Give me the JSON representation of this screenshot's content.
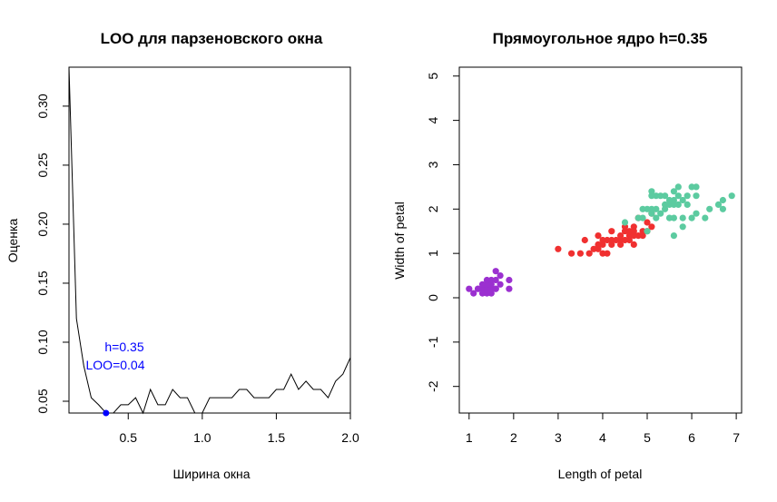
{
  "chart_data": [
    {
      "type": "line",
      "title": "LOO для парзеновского окна",
      "xlabel": "Ширина окна",
      "ylabel": "Оценка",
      "xlim": [
        0.1,
        2.0
      ],
      "ylim": [
        0.04,
        0.333
      ],
      "xticks": [
        0.5,
        1.0,
        1.5,
        2.0
      ],
      "xtick_labels": [
        "0.5",
        "1.0",
        "1.5",
        "2.0"
      ],
      "yticks": [
        0.05,
        0.1,
        0.15,
        0.2,
        0.25,
        0.3
      ],
      "ytick_labels": [
        "0.05",
        "0.10",
        "0.15",
        "0.20",
        "0.25",
        "0.30"
      ],
      "line_color": "#000000",
      "x": [
        0.1,
        0.15,
        0.2,
        0.25,
        0.3,
        0.35,
        0.4,
        0.45,
        0.5,
        0.55,
        0.6,
        0.65,
        0.7,
        0.75,
        0.8,
        0.85,
        0.9,
        0.95,
        1.0,
        1.05,
        1.1,
        1.15,
        1.2,
        1.25,
        1.3,
        1.35,
        1.4,
        1.45,
        1.5,
        1.55,
        1.6,
        1.65,
        1.7,
        1.75,
        1.8,
        1.85,
        1.9,
        1.95,
        2.0
      ],
      "y": [
        0.333,
        0.12,
        0.08,
        0.053,
        0.047,
        0.04,
        0.04,
        0.047,
        0.047,
        0.053,
        0.04,
        0.06,
        0.047,
        0.047,
        0.06,
        0.053,
        0.053,
        0.04,
        0.04,
        0.053,
        0.053,
        0.053,
        0.053,
        0.06,
        0.06,
        0.053,
        0.053,
        0.053,
        0.06,
        0.06,
        0.073,
        0.06,
        0.067,
        0.06,
        0.06,
        0.053,
        0.067,
        0.073,
        0.087
      ],
      "highlight": {
        "x": 0.35,
        "y": 0.04,
        "color": "#0000ff"
      },
      "annotation": {
        "lines": [
          "h=0.35",
          "LOO=0.04"
        ],
        "color": "#0000ff"
      }
    },
    {
      "type": "scatter",
      "title": "Прямоугольное ядро h=0.35",
      "xlabel": "Length of petal",
      "ylabel": "Width of petal",
      "xlim": [
        0.78,
        7.12
      ],
      "ylim": [
        -2.6,
        5.2
      ],
      "xticks": [
        1,
        2,
        3,
        4,
        5,
        6,
        7
      ],
      "xtick_labels": [
        "1",
        "2",
        "3",
        "4",
        "5",
        "6",
        "7"
      ],
      "yticks": [
        -2,
        -1,
        0,
        1,
        2,
        3,
        4,
        5
      ],
      "ytick_labels": [
        "-2",
        "-1",
        "0",
        "1",
        "2",
        "3",
        "4",
        "5"
      ],
      "series": [
        {
          "color": "#9b30d0",
          "points": [
            [
              1.0,
              0.2
            ],
            [
              1.1,
              0.1
            ],
            [
              1.2,
              0.2
            ],
            [
              1.3,
              0.2
            ],
            [
              1.3,
              0.3
            ],
            [
              1.3,
              0.1
            ],
            [
              1.4,
              0.2
            ],
            [
              1.4,
              0.3
            ],
            [
              1.4,
              0.1
            ],
            [
              1.5,
              0.2
            ],
            [
              1.5,
              0.4
            ],
            [
              1.5,
              0.1
            ],
            [
              1.6,
              0.2
            ],
            [
              1.6,
              0.4
            ],
            [
              1.6,
              0.6
            ],
            [
              1.7,
              0.3
            ],
            [
              1.7,
              0.5
            ],
            [
              1.9,
              0.2
            ],
            [
              1.9,
              0.4
            ],
            [
              1.5,
              0.3
            ],
            [
              1.2,
              0.2
            ],
            [
              1.4,
              0.4
            ],
            [
              1.6,
              0.2
            ]
          ]
        },
        {
          "color": "#f03030",
          "points": [
            [
              3.0,
              1.1
            ],
            [
              3.3,
              1.0
            ],
            [
              3.5,
              1.0
            ],
            [
              3.6,
              1.3
            ],
            [
              3.7,
              1.0
            ],
            [
              3.8,
              1.1
            ],
            [
              3.9,
              1.1
            ],
            [
              3.9,
              1.2
            ],
            [
              3.9,
              1.4
            ],
            [
              4.0,
              1.0
            ],
            [
              4.0,
              1.2
            ],
            [
              4.0,
              1.3
            ],
            [
              4.1,
              1.0
            ],
            [
              4.1,
              1.3
            ],
            [
              4.2,
              1.2
            ],
            [
              4.2,
              1.3
            ],
            [
              4.3,
              1.3
            ],
            [
              4.4,
              1.2
            ],
            [
              4.4,
              1.3
            ],
            [
              4.4,
              1.4
            ],
            [
              4.5,
              1.3
            ],
            [
              4.5,
              1.5
            ],
            [
              4.5,
              1.6
            ],
            [
              4.6,
              1.3
            ],
            [
              4.6,
              1.4
            ],
            [
              4.6,
              1.5
            ],
            [
              4.7,
              1.2
            ],
            [
              4.7,
              1.4
            ],
            [
              4.7,
              1.5
            ],
            [
              4.8,
              1.4
            ],
            [
              4.8,
              1.8
            ],
            [
              4.9,
              1.5
            ],
            [
              5.0,
              1.7
            ],
            [
              5.0,
              1.5
            ],
            [
              5.1,
              1.6
            ],
            [
              4.2,
              1.5
            ],
            [
              4.9,
              1.4
            ],
            [
              5.1,
              1.9
            ],
            [
              4.7,
              1.6
            ]
          ]
        },
        {
          "color": "#5ccba0",
          "points": [
            [
              4.5,
              1.7
            ],
            [
              4.8,
              1.8
            ],
            [
              4.9,
              1.8
            ],
            [
              5.0,
              2.0
            ],
            [
              5.0,
              1.5
            ],
            [
              5.1,
              2.3
            ],
            [
              5.1,
              1.9
            ],
            [
              5.1,
              2.0
            ],
            [
              5.1,
              2.4
            ],
            [
              5.2,
              2.3
            ],
            [
              5.2,
              2.0
            ],
            [
              5.3,
              2.3
            ],
            [
              5.3,
              1.9
            ],
            [
              5.4,
              2.3
            ],
            [
              5.4,
              2.1
            ],
            [
              5.5,
              2.1
            ],
            [
              5.5,
              1.8
            ],
            [
              5.5,
              2.2
            ],
            [
              5.6,
              2.4
            ],
            [
              5.6,
              2.2
            ],
            [
              5.6,
              1.4
            ],
            [
              5.6,
              2.1
            ],
            [
              5.6,
              1.8
            ],
            [
              5.7,
              2.5
            ],
            [
              5.7,
              2.1
            ],
            [
              5.7,
              2.3
            ],
            [
              5.8,
              2.2
            ],
            [
              5.8,
              1.8
            ],
            [
              5.8,
              1.6
            ],
            [
              5.9,
              2.3
            ],
            [
              5.9,
              2.1
            ],
            [
              6.0,
              2.5
            ],
            [
              6.0,
              1.8
            ],
            [
              6.1,
              2.3
            ],
            [
              6.1,
              1.9
            ],
            [
              6.1,
              2.5
            ],
            [
              6.3,
              1.8
            ],
            [
              6.4,
              2.0
            ],
            [
              6.6,
              2.1
            ],
            [
              6.7,
              2.2
            ],
            [
              6.7,
              2.0
            ],
            [
              6.9,
              2.3
            ],
            [
              5.4,
              2.0
            ],
            [
              5.2,
              1.8
            ],
            [
              4.9,
              2.0
            ]
          ]
        }
      ]
    }
  ]
}
